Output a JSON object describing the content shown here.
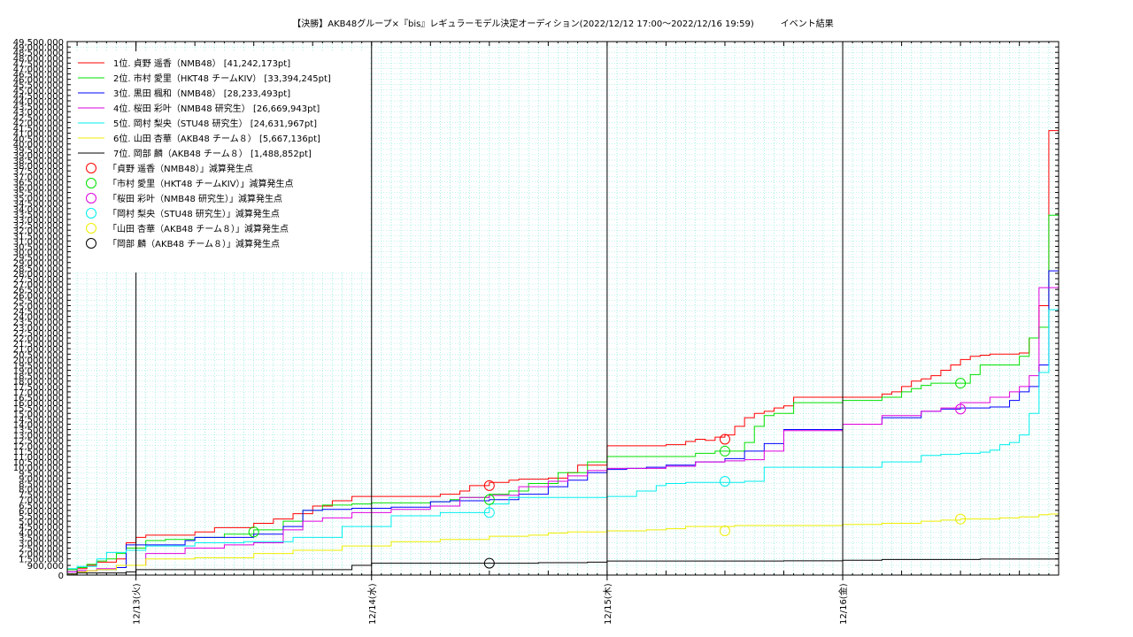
{
  "chart_data": {
    "type": "line",
    "title": "【決勝】AKB48グループ×『bis』レギュラーモデル決定オーディション(2022/12/12 17:00〜2022/12/16 19:59)　　　イベント結果",
    "ylim": [
      0,
      49500000
    ],
    "y_ticks": [
      0,
      900000,
      1500000,
      2000000,
      2500000,
      3000000,
      3500000,
      4000000,
      4500000,
      5000000,
      5500000,
      6000000,
      6500000,
      7000000,
      7500000,
      8000000,
      8500000,
      9000000,
      9500000,
      10000000,
      10500000,
      11000000,
      11500000,
      12000000,
      12500000,
      13000000,
      13500000,
      14000000,
      14500000,
      15000000,
      15500000,
      16000000,
      16500000,
      17000000,
      17500000,
      18000000,
      18500000,
      19000000,
      19500000,
      20000000,
      20500000,
      21000000,
      21500000,
      22000000,
      22500000,
      23000000,
      23500000,
      24000000,
      24500000,
      25000000,
      25500000,
      26000000,
      26500000,
      27000000,
      27500000,
      28000000,
      28500000,
      29000000,
      29500000,
      30000000,
      30500000,
      31000000,
      31500000,
      32000000,
      32500000,
      33000000,
      33500000,
      34000000,
      34500000,
      35000000,
      35500000,
      36000000,
      36500000,
      37000000,
      37500000,
      38000000,
      38500000,
      39000000,
      39500000,
      40000000,
      40500000,
      41000000,
      41500000,
      42000000,
      42500000,
      43000000,
      43500000,
      44000000,
      44500000,
      45000000,
      45500000,
      46000000,
      46500000,
      47000000,
      47500000,
      48000000,
      48500000,
      49000000,
      49500000
    ],
    "y_tick_labels": [
      "0",
      "900,000",
      "1,500,000",
      "2,000,000",
      "2,500,000",
      "3,000,000",
      "3,500,000",
      "4,000,000",
      "4,500,000",
      "5,000,000",
      "5,500,000",
      "6,000,000",
      "6,500,000",
      "7,000,000",
      "7,500,000",
      "8,000,000",
      "8,500,000",
      "9,000,000",
      "9,500,000",
      "10,000,000",
      "10,500,000",
      "11,000,000",
      "11,500,000",
      "12,000,000",
      "12,500,000",
      "13,000,000",
      "13,500,000",
      "14,000,000",
      "14,500,000",
      "15,000,000",
      "15,500,000",
      "16,000,000",
      "16,500,000",
      "17,000,000",
      "17,500,000",
      "18,000,000",
      "18,500,000",
      "19,000,000",
      "19,500,000",
      "20,000,000",
      "20,500,000",
      "21,000,000",
      "21,500,000",
      "22,000,000",
      "22,500,000",
      "23,000,000",
      "23,500,000",
      "24,000,000",
      "24,500,000",
      "25,000,000",
      "25,500,000",
      "26,000,000",
      "26,500,000",
      "27,000,000",
      "27,500,000",
      "28,000,000",
      "28,500,000",
      "29,000,000",
      "29,500,000",
      "30,000,000",
      "30,500,000",
      "31,000,000",
      "31,500,000",
      "32,000,000",
      "32,500,000",
      "33,000,000",
      "33,500,000",
      "34,000,000",
      "34,500,000",
      "35,000,000",
      "35,500,000",
      "36,000,000",
      "36,500,000",
      "37,000,000",
      "37,500,000",
      "38,000,000",
      "38,500,000",
      "39,000,000",
      "39,500,000",
      "40,000,000",
      "40,500,000",
      "41,000,000",
      "41,500,000",
      "42,000,000",
      "42,500,000",
      "43,000,000",
      "43,500,000",
      "44,000,000",
      "44,500,000",
      "45,000,000",
      "45,500,000",
      "46,000,000",
      "46,500,000",
      "47,000,000",
      "47,500,000",
      "48,000,000",
      "48,500,000",
      "49,000,000",
      "49,500,000"
    ],
    "xlim": [
      17,
      118
    ],
    "x_ticks": [
      24,
      48,
      72,
      96
    ],
    "x_tick_labels": [
      "12/13(火)",
      "12/14(水)",
      "12/15(木)",
      "12/16(金)"
    ],
    "grid": true,
    "legend_position": "top-left",
    "series": [
      {
        "name": "1位. 貞野 遥香（NMB48） [41,242,173pt]",
        "color": "#ff0000",
        "x": [
          17,
          18,
          19,
          20,
          22,
          23,
          24,
          25,
          30,
          32,
          36,
          38,
          40,
          42,
          44,
          46,
          48,
          50,
          55,
          57,
          58,
          60,
          62,
          63,
          66,
          68,
          69,
          72,
          78,
          80,
          81,
          82,
          83,
          84,
          85,
          86,
          87,
          88,
          89,
          90,
          91,
          96,
          100,
          101,
          102,
          103,
          104,
          105,
          106,
          107,
          108,
          109,
          110,
          111,
          112,
          113,
          114,
          115,
          116,
          117,
          118
        ],
        "y": [
          500000,
          600000,
          900000,
          1200000,
          1500000,
          3000000,
          3500000,
          3700000,
          4000000,
          4400000,
          4800000,
          5200000,
          5700000,
          6400000,
          6900000,
          7300000,
          7300000,
          7300000,
          7500000,
          7800000,
          8300000,
          8600000,
          8800000,
          8900000,
          9000000,
          9500000,
          10200000,
          12000000,
          12100000,
          12400000,
          12600000,
          12500000,
          12800000,
          13000000,
          13800000,
          14600000,
          15000000,
          15200000,
          15500000,
          15700000,
          16500000,
          16500000,
          16800000,
          17000000,
          17500000,
          18000000,
          18200000,
          18500000,
          19000000,
          19500000,
          20000000,
          20300000,
          20400000,
          20500000,
          20500000,
          20500000,
          20600000,
          22000000,
          25000000,
          41242173,
          41242173
        ]
      },
      {
        "name": "2位. 市村 愛里（HKT48 チームKIV） [33,394,245pt]",
        "color": "#00e000",
        "x": [
          17,
          18,
          19,
          20,
          21,
          22,
          23,
          25,
          27,
          30,
          33,
          36,
          39,
          41,
          43,
          46,
          48,
          54,
          56,
          57,
          60,
          62,
          64,
          67,
          70,
          72,
          78,
          81,
          83,
          84,
          86,
          87,
          88,
          89,
          91,
          96,
          100,
          102,
          103,
          104,
          105,
          107,
          108,
          109,
          110,
          111,
          114,
          115,
          116,
          117,
          118
        ],
        "y": [
          500000,
          700000,
          1000000,
          1300000,
          1500000,
          2000000,
          2500000,
          3200000,
          3300000,
          3500000,
          3800000,
          4200000,
          5000000,
          6000000,
          6500000,
          6600000,
          6700000,
          6800000,
          7000000,
          7200000,
          7500000,
          7800000,
          8500000,
          9500000,
          10500000,
          11000000,
          11000000,
          11300000,
          11500000,
          11500000,
          12300000,
          13800000,
          14800000,
          15000000,
          16000000,
          16200000,
          16500000,
          17000000,
          17300000,
          17600000,
          17800000,
          17800000,
          17800000,
          18600000,
          19500000,
          19500000,
          20300000,
          22000000,
          23000000,
          33394245,
          33394245
        ]
      },
      {
        "name": "3位. 黒田 楓和（NMB48） [28,233,493pt]",
        "color": "#0000ff",
        "x": [
          17,
          18,
          20,
          22,
          23,
          25,
          29,
          30,
          33,
          36,
          39,
          41,
          43,
          46,
          50,
          54,
          56,
          60,
          63,
          66,
          68,
          70,
          72,
          74,
          76,
          78,
          81,
          84,
          86,
          88,
          90,
          96,
          100,
          104,
          106,
          108,
          111,
          113,
          114,
          115,
          116,
          117,
          118
        ],
        "y": [
          300000,
          400000,
          500000,
          700000,
          2800000,
          2800000,
          3200000,
          3500000,
          3500000,
          3800000,
          4500000,
          6000000,
          6100000,
          6200000,
          6300000,
          6800000,
          6900000,
          7000000,
          7500000,
          8200000,
          8800000,
          9500000,
          9800000,
          9900000,
          10000000,
          10200000,
          10500000,
          10800000,
          11500000,
          12200000,
          13500000,
          14000000,
          14600000,
          15200000,
          15400000,
          15500000,
          15600000,
          16200000,
          17000000,
          17500000,
          19500000,
          28233493,
          28233493
        ]
      },
      {
        "name": "4位. 桜田 彩叶（NMB48 研究生） [26,669,943pt]",
        "color": "#dd00dd",
        "x": [
          17,
          18,
          20,
          22,
          25,
          29,
          33,
          36,
          39,
          41,
          43,
          46,
          50,
          54,
          57,
          60,
          63,
          66,
          68,
          70,
          72,
          75,
          78,
          81,
          84,
          86,
          88,
          90,
          96,
          100,
          104,
          106,
          108,
          111,
          113,
          114,
          115,
          116,
          117,
          118
        ],
        "y": [
          300000,
          400000,
          600000,
          900000,
          2000000,
          2500000,
          2800000,
          3000000,
          4200000,
          5000000,
          5300000,
          5800000,
          6100000,
          6400000,
          7200000,
          7400000,
          8200000,
          8700000,
          9200000,
          9700000,
          9900000,
          9900000,
          10100000,
          10500000,
          10600000,
          10700000,
          11500000,
          13400000,
          14000000,
          14800000,
          15200000,
          15500000,
          16000000,
          16500000,
          17000000,
          17500000,
          18500000,
          26669943,
          26669943,
          26669943
        ]
      },
      {
        "name": "5位. 岡村 梨央（STU48 研究生） [24,631,967pt]",
        "color": "#00eeee",
        "x": [
          17,
          18,
          20,
          21,
          23,
          25,
          30,
          35,
          40,
          45,
          50,
          55,
          60,
          62,
          65,
          70,
          72,
          75,
          77,
          78,
          80,
          86,
          88,
          90,
          96,
          100,
          104,
          106,
          108,
          110,
          111,
          112,
          113,
          114,
          115,
          116,
          117,
          118
        ],
        "y": [
          600000,
          800000,
          1500000,
          2100000,
          2300000,
          2700000,
          3000000,
          3100000,
          3500000,
          4500000,
          5500000,
          5800000,
          6600000,
          7200000,
          7200000,
          7200000,
          7300000,
          7800000,
          8300000,
          8500000,
          8600000,
          8700000,
          10000000,
          10000000,
          10000000,
          10500000,
          11100000,
          11200000,
          11300000,
          11400000,
          11600000,
          12100000,
          12300000,
          13000000,
          15000000,
          18800000,
          24631967,
          24631967
        ]
      },
      {
        "name": "6位. 山田 杏華（AKB48 チーム８） [5,667,136pt]",
        "color": "#eeee00",
        "x": [
          17,
          18,
          19,
          20,
          22,
          25,
          30,
          36,
          40,
          45,
          50,
          55,
          60,
          64,
          66,
          68,
          72,
          76,
          78,
          80,
          85,
          90,
          96,
          100,
          104,
          106,
          108,
          112,
          114,
          116,
          117,
          118
        ],
        "y": [
          100000,
          300000,
          400000,
          500000,
          900000,
          1500000,
          1600000,
          2000000,
          2300000,
          2700000,
          3100000,
          3300000,
          3600000,
          3700000,
          3900000,
          4000000,
          4100000,
          4200000,
          4300000,
          4500000,
          4600000,
          4600000,
          4700000,
          4800000,
          5000000,
          5100000,
          5200000,
          5300000,
          5400000,
          5600000,
          5667136,
          5667136
        ]
      },
      {
        "name": "7位. 岡部 麟（AKB48 チーム８） [1,488,852pt]",
        "color": "#000000",
        "x": [
          17,
          18,
          21,
          23,
          24,
          30,
          40,
          45,
          46,
          48,
          55,
          60,
          65,
          70,
          72,
          80,
          90,
          96,
          100,
          110,
          118
        ],
        "y": [
          100000,
          200000,
          200000,
          300000,
          500000,
          500000,
          500000,
          500000,
          900000,
          1100000,
          1100000,
          1100000,
          1150000,
          1200000,
          1300000,
          1300000,
          1320000,
          1380000,
          1450000,
          1488852,
          1488852
        ]
      }
    ],
    "markers": [
      {
        "name": "「貞野 遥香（NMB48）」減算発生点",
        "color": "#ff0000",
        "x": [
          60,
          84
        ],
        "y": [
          8300000,
          12600000
        ]
      },
      {
        "name": "「市村 愛里（HKT48 チームKIV）」減算発生点",
        "color": "#00e000",
        "x": [
          36,
          60,
          84,
          108
        ],
        "y": [
          4000000,
          7000000,
          11500000,
          17800000
        ]
      },
      {
        "name": "「桜田 彩叶（NMB48 研究生）」減算発生点",
        "color": "#dd00dd",
        "x": [
          108
        ],
        "y": [
          15400000
        ]
      },
      {
        "name": "「岡村 梨央（STU48 研究生）」減算発生点",
        "color": "#00eeee",
        "x": [
          60,
          84
        ],
        "y": [
          5800000,
          8700000
        ]
      },
      {
        "name": "「山田 杏華（AKB48 チーム８）」減算発生点",
        "color": "#eeee00",
        "x": [
          84,
          108
        ],
        "y": [
          4100000,
          5200000
        ]
      },
      {
        "name": "「岡部 麟（AKB48 チーム８）」減算発生点",
        "color": "#000000",
        "x": [
          60
        ],
        "y": [
          1100000
        ]
      }
    ]
  }
}
